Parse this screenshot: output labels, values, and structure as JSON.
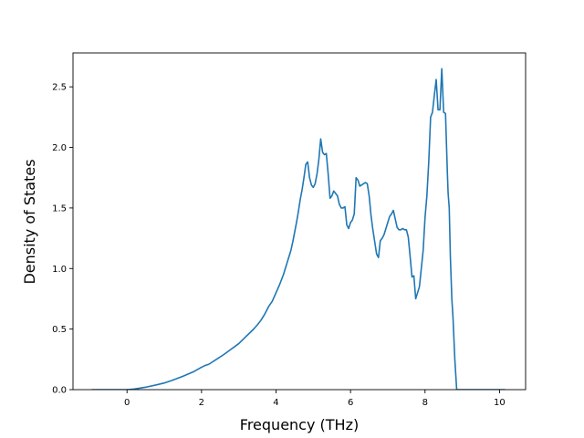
{
  "chart_data": {
    "type": "line",
    "title": "",
    "xlabel": "Frequency (THz)",
    "ylabel": "Density of States",
    "xlim": [
      -1.45,
      10.7
    ],
    "ylim": [
      0,
      2.78
    ],
    "grid": false,
    "legend": "none",
    "x_ticks": [
      0,
      2,
      4,
      6,
      8,
      10
    ],
    "x_tick_labels": [
      "0",
      "2",
      "4",
      "6",
      "8",
      "10"
    ],
    "y_ticks": [
      0.0,
      0.5,
      1.0,
      1.5,
      2.0,
      2.5
    ],
    "y_tick_labels": [
      "0.0",
      "0.5",
      "1.0",
      "1.5",
      "2.0",
      "2.5"
    ],
    "line_color": "#1f77b4",
    "series": [
      {
        "x": [
          -0.95,
          -0.5,
          0.0,
          0.2,
          0.5,
          0.8,
          1.0,
          1.2,
          1.5,
          1.8,
          2.0,
          2.1,
          2.2,
          2.4,
          2.6,
          2.8,
          3.0,
          3.2,
          3.4,
          3.5,
          3.6,
          3.7,
          3.8,
          3.9,
          4.0,
          4.1,
          4.2,
          4.3,
          4.4,
          4.45,
          4.5,
          4.55,
          4.6,
          4.65,
          4.7,
          4.75,
          4.8,
          4.85,
          4.9,
          4.95,
          5.0,
          5.05,
          5.1,
          5.15,
          5.2,
          5.25,
          5.3,
          5.35,
          5.4,
          5.45,
          5.5,
          5.55,
          5.6,
          5.65,
          5.7,
          5.75,
          5.8,
          5.85,
          5.9,
          5.95,
          6.0,
          6.05,
          6.1,
          6.15,
          6.2,
          6.25,
          6.3,
          6.35,
          6.4,
          6.45,
          6.5,
          6.55,
          6.6,
          6.65,
          6.7,
          6.75,
          6.8,
          6.85,
          6.9,
          6.95,
          7.0,
          7.05,
          7.1,
          7.15,
          7.2,
          7.25,
          7.3,
          7.35,
          7.4,
          7.45,
          7.5,
          7.55,
          7.6,
          7.65,
          7.7,
          7.75,
          7.8,
          7.85,
          7.9,
          7.95,
          8.0,
          8.05,
          8.1,
          8.15,
          8.2,
          8.25,
          8.3,
          8.35,
          8.4,
          8.45,
          8.5,
          8.55,
          8.6,
          8.62,
          8.65,
          8.68,
          8.72,
          8.75,
          8.8,
          8.85,
          8.9,
          8.95,
          9.0,
          9.05,
          9.1,
          9.15,
          9.2,
          9.25,
          9.3,
          10.15
        ],
        "y": [
          0.0,
          0.0,
          0.0,
          0.005,
          0.02,
          0.04,
          0.055,
          0.075,
          0.11,
          0.15,
          0.185,
          0.2,
          0.21,
          0.25,
          0.29,
          0.335,
          0.38,
          0.44,
          0.5,
          0.535,
          0.575,
          0.625,
          0.685,
          0.73,
          0.8,
          0.87,
          0.95,
          1.05,
          1.15,
          1.22,
          1.3,
          1.38,
          1.47,
          1.57,
          1.65,
          1.75,
          1.86,
          1.88,
          1.75,
          1.69,
          1.67,
          1.7,
          1.78,
          1.9,
          2.07,
          1.96,
          1.94,
          1.95,
          1.78,
          1.58,
          1.6,
          1.64,
          1.62,
          1.6,
          1.53,
          1.5,
          1.5,
          1.51,
          1.36,
          1.33,
          1.38,
          1.4,
          1.45,
          1.75,
          1.73,
          1.68,
          1.69,
          1.7,
          1.71,
          1.7,
          1.6,
          1.44,
          1.32,
          1.22,
          1.12,
          1.09,
          1.23,
          1.25,
          1.28,
          1.33,
          1.38,
          1.43,
          1.45,
          1.48,
          1.41,
          1.34,
          1.32,
          1.32,
          1.33,
          1.32,
          1.32,
          1.26,
          1.1,
          0.93,
          0.94,
          0.75,
          0.8,
          0.85,
          1.0,
          1.15,
          1.42,
          1.6,
          1.88,
          2.25,
          2.29,
          2.43,
          2.56,
          2.31,
          2.31,
          2.65,
          2.29,
          2.28,
          1.79,
          1.62,
          1.5,
          1.1,
          0.75,
          0.6,
          0.25,
          0.0,
          0.0,
          0.0,
          0.0,
          0.0,
          0.0,
          0.0,
          0.0,
          0.0,
          0.0,
          0.0
        ],
        "color": "#1f77b4"
      }
    ]
  }
}
